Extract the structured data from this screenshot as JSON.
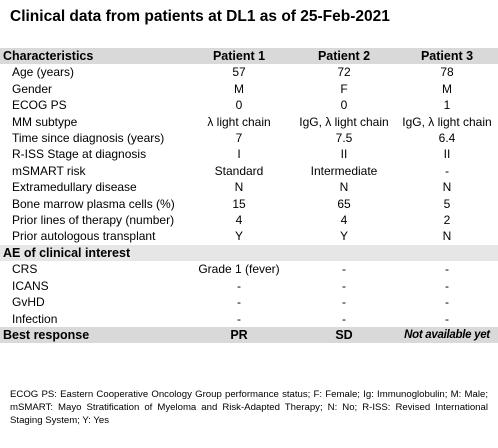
{
  "title": "Clinical data from patients at DL1 as of 25-Feb-2021",
  "header": [
    "Characteristics",
    "Patient 1",
    "Patient 2",
    "Patient 3"
  ],
  "characteristics": [
    [
      "Age (years)",
      "57",
      "72",
      "78"
    ],
    [
      "Gender",
      "M",
      "F",
      "M"
    ],
    [
      "ECOG PS",
      "0",
      "0",
      "1"
    ],
    [
      "MM subtype",
      "λ light chain",
      "IgG, λ light chain",
      "IgG, λ light chain"
    ],
    [
      "Time since diagnosis (years)",
      "7",
      "7.5",
      "6.4"
    ],
    [
      "R-ISS Stage at diagnosis",
      "I",
      "II",
      "II"
    ],
    [
      "mSMART risk",
      "Standard",
      "Intermediate",
      "-"
    ],
    [
      "Extramedullary disease",
      "N",
      "N",
      "N"
    ],
    [
      "Bone marrow plasma cells (%)",
      "15",
      "65",
      "5"
    ],
    [
      "Prior lines of therapy (number)",
      "4",
      "4",
      "2"
    ],
    [
      "Prior autologous transplant",
      "Y",
      "Y",
      "N"
    ]
  ],
  "ae_section_title": "AE of clinical interest",
  "ae_rows": [
    [
      "CRS",
      "Grade 1 (fever)",
      "-",
      "-"
    ],
    [
      "ICANS",
      "-",
      "-",
      "-"
    ],
    [
      "GvHD",
      "-",
      "-",
      "-"
    ],
    [
      "Infection",
      "-",
      "-",
      "-"
    ]
  ],
  "best_response": [
    "Best response",
    "PR",
    "SD",
    "Not available yet"
  ],
  "footnote": "ECOG PS: Eastern Cooperative Oncology Group performance status; F: Female; Ig: Immunoglobulin; M: Male; mSMART: Mayo Stratification of Myeloma and Risk-Adapted Therapy; N: No; R-ISS: Revised International Staging System; Y: Yes"
}
